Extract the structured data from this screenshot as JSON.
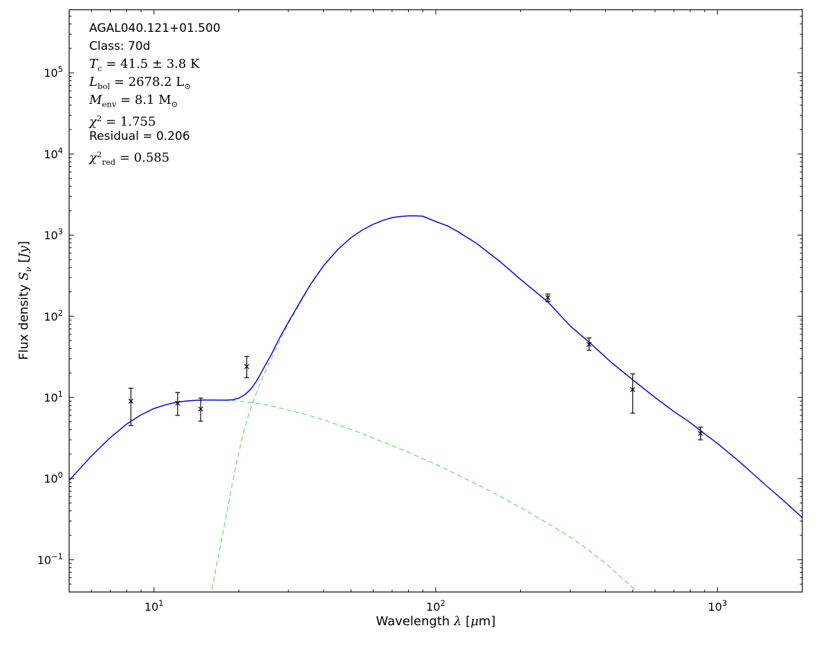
{
  "figure": {
    "background": "#ffffff"
  },
  "annotation": {
    "lines": [
      {
        "name": "source-name",
        "runs": [
          {
            "t": "AGAL040.121+01.500"
          }
        ]
      },
      {
        "name": "class-label",
        "runs": [
          {
            "t": "Class: 70d"
          }
        ]
      },
      {
        "name": "temperature",
        "runs": [
          {
            "t": "T",
            "f": "m",
            "i": true
          },
          {
            "t": "c",
            "f": "m",
            "sub": true
          },
          {
            "t": " = 41.5 ± 3.8 K",
            "f": "m"
          }
        ]
      },
      {
        "name": "luminosity",
        "runs": [
          {
            "t": "L",
            "f": "m",
            "i": true
          },
          {
            "t": "bol",
            "f": "m",
            "sub": true
          },
          {
            "t": " = 2678.2 L",
            "f": "m"
          },
          {
            "t": "⊙",
            "f": "m",
            "sub": true
          }
        ]
      },
      {
        "name": "envelope-mass",
        "runs": [
          {
            "t": "M",
            "f": "m",
            "i": true
          },
          {
            "t": "env",
            "f": "m",
            "sub": true
          },
          {
            "t": " = 8.1 M",
            "f": "m"
          },
          {
            "t": "⊙",
            "f": "m",
            "sub": true
          }
        ]
      },
      {
        "name": "chi-squared",
        "runs": [
          {
            "t": "χ",
            "f": "m",
            "i": true
          },
          {
            "t": "2",
            "f": "m",
            "sup": true
          },
          {
            "t": " = 1.755",
            "f": "m"
          }
        ]
      },
      {
        "name": "residual",
        "runs": [
          {
            "t": "Residual = 0.206"
          }
        ]
      },
      {
        "name": "chi-squared-reduced",
        "runs": [
          {
            "t": "χ",
            "f": "m",
            "i": true
          },
          {
            "t": "2",
            "f": "m",
            "sup": true
          },
          {
            "t": "red",
            "f": "m",
            "sub": true
          },
          {
            "t": " = 0.585",
            "f": "m"
          }
        ]
      }
    ]
  },
  "xlabel": {
    "runs": [
      {
        "t": "Wavelength "
      },
      {
        "t": "λ",
        "f": "m",
        "i": true
      },
      {
        "t": " ["
      },
      {
        "t": "μ",
        "f": "m",
        "i": true
      },
      {
        "t": "m"
      },
      {
        "t": "]"
      }
    ]
  },
  "ylabel": {
    "runs": [
      {
        "t": "Flux density "
      },
      {
        "t": "S",
        "f": "m",
        "i": true
      },
      {
        "t": "ν",
        "f": "m",
        "i": true,
        "sub": true
      },
      {
        "t": " ["
      },
      {
        "t": "Jy",
        "f": "m",
        "i": true
      },
      {
        "t": "]"
      }
    ]
  },
  "chart_data": {
    "type": "line",
    "xscale": "log",
    "yscale": "log",
    "grid": false,
    "axes": {
      "xlim": [
        5,
        2000
      ],
      "ylim": [
        0.04,
        600000
      ],
      "xticks": [
        {
          "value": 10,
          "exp": "1"
        },
        {
          "value": 100,
          "exp": "2"
        },
        {
          "value": 1000,
          "exp": "3"
        }
      ],
      "yticks": [
        {
          "value": 0.1,
          "exp": "−1"
        },
        {
          "value": 1,
          "exp": "0"
        },
        {
          "value": 10,
          "exp": "1"
        },
        {
          "value": 100,
          "exp": "2"
        },
        {
          "value": 1000,
          "exp": "3"
        },
        {
          "value": 10000,
          "exp": "4"
        },
        {
          "value": 100000,
          "exp": "5"
        }
      ]
    },
    "colors": {
      "model": "#0000e6",
      "component": "#62d962",
      "data": "#000000"
    },
    "series": [
      {
        "name": "warm-component",
        "style": "dashed",
        "points": [
          [
            5,
            0.95
          ],
          [
            6,
            1.9
          ],
          [
            7,
            3.2
          ],
          [
            8,
            4.7
          ],
          [
            9,
            6.1
          ],
          [
            10,
            7.3
          ],
          [
            11,
            8.1
          ],
          [
            12,
            8.7
          ],
          [
            13,
            9.0
          ],
          [
            14,
            9.2
          ],
          [
            15,
            9.3
          ],
          [
            16,
            9.3
          ],
          [
            17,
            9.25
          ],
          [
            18,
            9.2
          ],
          [
            19,
            9.15
          ],
          [
            20,
            9.0
          ],
          [
            22,
            8.7
          ],
          [
            25,
            8.1
          ],
          [
            28,
            7.4
          ],
          [
            32,
            6.6
          ],
          [
            36,
            5.9
          ],
          [
            40,
            5.3
          ],
          [
            45,
            4.6
          ],
          [
            50,
            4.05
          ],
          [
            60,
            3.15
          ],
          [
            70,
            2.55
          ],
          [
            80,
            2.1
          ],
          [
            90,
            1.75
          ],
          [
            100,
            1.5
          ],
          [
            120,
            1.1
          ],
          [
            140,
            0.85
          ],
          [
            170,
            0.6
          ],
          [
            200,
            0.44
          ],
          [
            250,
            0.28
          ],
          [
            300,
            0.19
          ],
          [
            350,
            0.13
          ],
          [
            400,
            0.09
          ],
          [
            450,
            0.063
          ],
          [
            500,
            0.045
          ],
          [
            560,
            0.031
          ],
          [
            620,
            0.022
          ]
        ]
      },
      {
        "name": "cold-component",
        "style": "dashed",
        "points": [
          [
            15.5,
            0.022
          ],
          [
            16,
            0.04
          ],
          [
            16.5,
            0.07
          ],
          [
            17,
            0.12
          ],
          [
            17.5,
            0.2
          ],
          [
            18,
            0.33
          ],
          [
            18.5,
            0.55
          ],
          [
            19,
            0.9
          ],
          [
            19.5,
            1.4
          ],
          [
            20,
            2.1
          ],
          [
            20.5,
            3.0
          ],
          [
            21,
            4.2
          ],
          [
            21.5,
            5.6
          ],
          [
            22,
            7.2
          ],
          [
            22.5,
            9.0
          ],
          [
            23,
            11
          ],
          [
            24,
            16
          ],
          [
            25,
            22
          ],
          [
            26,
            29
          ],
          [
            27,
            39
          ],
          [
            28,
            50
          ],
          [
            30,
            81
          ],
          [
            33,
            146
          ],
          [
            36,
            246
          ],
          [
            40,
            415
          ],
          [
            45,
            665
          ],
          [
            50,
            925
          ]
        ]
      },
      {
        "name": "total-model",
        "style": "solid",
        "points": [
          [
            5,
            0.95
          ],
          [
            6,
            1.9
          ],
          [
            7,
            3.2
          ],
          [
            8,
            4.7
          ],
          [
            9,
            6.1
          ],
          [
            10,
            7.3
          ],
          [
            11,
            8.1
          ],
          [
            12,
            8.7
          ],
          [
            13,
            9.0
          ],
          [
            14,
            9.2
          ],
          [
            15,
            9.3
          ],
          [
            16,
            9.3
          ],
          [
            17,
            9.25
          ],
          [
            18,
            9.25
          ],
          [
            19,
            9.35
          ],
          [
            20,
            9.8
          ],
          [
            21,
            10.8
          ],
          [
            22,
            12.5
          ],
          [
            23,
            15.5
          ],
          [
            24,
            20
          ],
          [
            25,
            26
          ],
          [
            26,
            33
          ],
          [
            27,
            43
          ],
          [
            28,
            55
          ],
          [
            30,
            85
          ],
          [
            33,
            150
          ],
          [
            36,
            250
          ],
          [
            40,
            420
          ],
          [
            45,
            670
          ],
          [
            50,
            930
          ],
          [
            55,
            1160
          ],
          [
            60,
            1360
          ],
          [
            65,
            1520
          ],
          [
            70,
            1640
          ],
          [
            75,
            1700
          ],
          [
            80,
            1730
          ],
          [
            85,
            1730
          ],
          [
            90,
            1710
          ],
          [
            100,
            1470
          ],
          [
            110,
            1300
          ],
          [
            120,
            1100
          ],
          [
            140,
            785
          ],
          [
            170,
            465
          ],
          [
            200,
            285
          ],
          [
            250,
            150
          ],
          [
            300,
            76
          ],
          [
            350,
            48
          ],
          [
            420,
            27
          ],
          [
            500,
            16.5
          ],
          [
            600,
            10
          ],
          [
            700,
            6.7
          ],
          [
            800,
            4.9
          ],
          [
            870,
            3.9
          ],
          [
            1000,
            2.7
          ],
          [
            1200,
            1.6
          ],
          [
            1500,
            0.8
          ],
          [
            1700,
            0.55
          ],
          [
            2000,
            0.33
          ]
        ]
      }
    ],
    "data_points": {
      "marker": "x",
      "points": [
        {
          "x": 8.28,
          "y": 9.0,
          "lo": 4.5,
          "hi": 13.0
        },
        {
          "x": 12.13,
          "y": 8.5,
          "lo": 6.0,
          "hi": 11.5
        },
        {
          "x": 14.65,
          "y": 7.2,
          "lo": 5.1,
          "hi": 9.8
        },
        {
          "x": 21.34,
          "y": 24.0,
          "lo": 17.5,
          "hi": 32.0
        },
        {
          "x": 250,
          "y": 170.0,
          "lo": 152.0,
          "hi": 188.0
        },
        {
          "x": 350,
          "y": 45.0,
          "lo": 38.0,
          "hi": 54.0
        },
        {
          "x": 500,
          "y": 12.5,
          "lo": 6.4,
          "hi": 19.5
        },
        {
          "x": 870,
          "y": 3.6,
          "lo": 3.0,
          "hi": 4.3
        }
      ]
    }
  }
}
